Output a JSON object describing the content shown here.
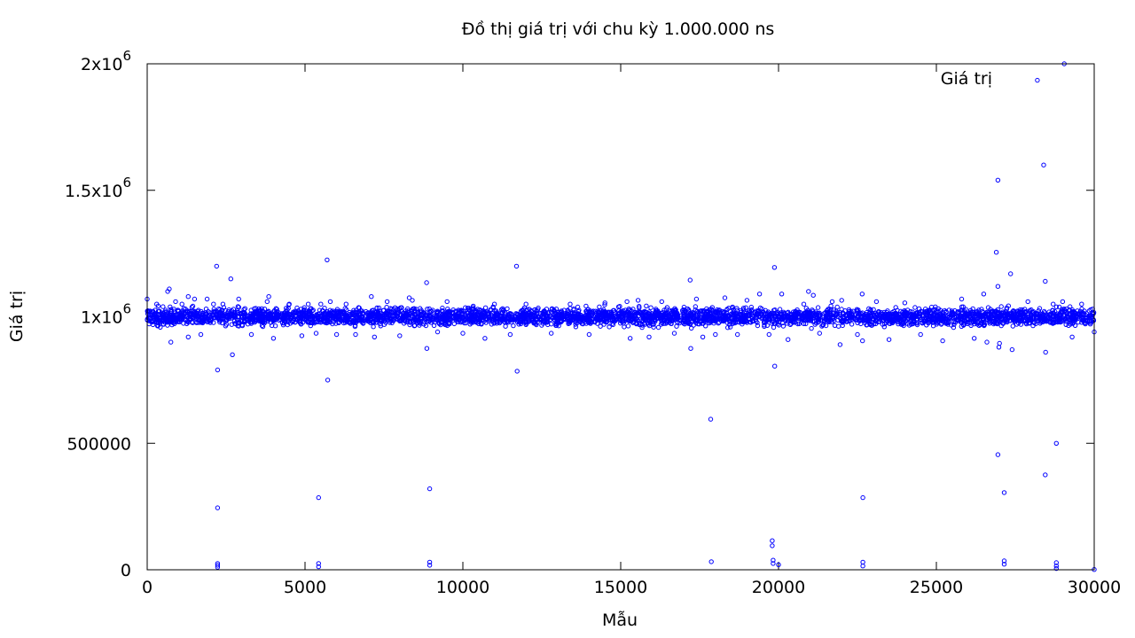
{
  "chart_data": {
    "type": "scatter",
    "title": "Đồ thị giá trị với chu kỳ 1.000.000 ns",
    "xlabel": "Mẫu",
    "ylabel": "Giá trị",
    "xlim": [
      0,
      30000
    ],
    "ylim": [
      0,
      2000000
    ],
    "x_ticks": [
      {
        "value": 0,
        "label": "0"
      },
      {
        "value": 5000,
        "label": "5000"
      },
      {
        "value": 10000,
        "label": "10000"
      },
      {
        "value": 15000,
        "label": "15000"
      },
      {
        "value": 20000,
        "label": "20000"
      },
      {
        "value": 25000,
        "label": "25000"
      },
      {
        "value": 30000,
        "label": "30000"
      }
    ],
    "y_ticks": [
      {
        "value": 0,
        "base": "0",
        "exp": ""
      },
      {
        "value": 500000,
        "base": "500000",
        "exp": ""
      },
      {
        "value": 1000000,
        "base": "1x10",
        "exp": "6"
      },
      {
        "value": 1500000,
        "base": "1.5x10",
        "exp": "6"
      },
      {
        "value": 2000000,
        "base": "2x10",
        "exp": "6"
      }
    ],
    "grid": false,
    "legend_position": "top-right",
    "series": [
      {
        "name": "Giá trị",
        "color": "#0000ff",
        "marker": "open-circle",
        "band": {
          "center": 1000000,
          "typical_spread": 35000,
          "x_start": 0,
          "x_end": 30000,
          "description_values": [
            960000,
            1040000
          ]
        },
        "points": [
          [
            0,
            1070000
          ],
          [
            300,
            1050000
          ],
          [
            500,
            1040000
          ],
          [
            650,
            1100000
          ],
          [
            700,
            1110000
          ],
          [
            750,
            900000
          ],
          [
            900,
            1060000
          ],
          [
            1100,
            1050000
          ],
          [
            1300,
            1080000
          ],
          [
            1300,
            920000
          ],
          [
            1500,
            1070000
          ],
          [
            1700,
            930000
          ],
          [
            1900,
            1070000
          ],
          [
            2100,
            1050000
          ],
          [
            2200,
            1200000
          ],
          [
            2230,
            790000
          ],
          [
            2230,
            245000
          ],
          [
            2230,
            25000
          ],
          [
            2230,
            18000
          ],
          [
            2230,
            10000
          ],
          [
            2400,
            1050000
          ],
          [
            2650,
            1150000
          ],
          [
            2700,
            850000
          ],
          [
            2900,
            1070000
          ],
          [
            3300,
            930000
          ],
          [
            3800,
            1060000
          ],
          [
            3850,
            1080000
          ],
          [
            4000,
            915000
          ],
          [
            4500,
            1050000
          ],
          [
            4900,
            925000
          ],
          [
            5100,
            1050000
          ],
          [
            5350,
            935000
          ],
          [
            5430,
            285000
          ],
          [
            5430,
            25000
          ],
          [
            5430,
            12000
          ],
          [
            5500,
            1050000
          ],
          [
            5700,
            1225000
          ],
          [
            5720,
            750000
          ],
          [
            5800,
            1060000
          ],
          [
            6000,
            930000
          ],
          [
            6300,
            1050000
          ],
          [
            6600,
            930000
          ],
          [
            7100,
            1080000
          ],
          [
            7200,
            920000
          ],
          [
            7600,
            1060000
          ],
          [
            8000,
            925000
          ],
          [
            8300,
            1075000
          ],
          [
            8400,
            1065000
          ],
          [
            8850,
            1135000
          ],
          [
            8860,
            875000
          ],
          [
            8950,
            320000
          ],
          [
            8950,
            30000
          ],
          [
            8950,
            18000
          ],
          [
            9200,
            940000
          ],
          [
            9500,
            1060000
          ],
          [
            10000,
            935000
          ],
          [
            10700,
            915000
          ],
          [
            11000,
            1050000
          ],
          [
            11500,
            930000
          ],
          [
            11700,
            1200000
          ],
          [
            11720,
            785000
          ],
          [
            12000,
            1050000
          ],
          [
            12800,
            935000
          ],
          [
            13400,
            1050000
          ],
          [
            14000,
            930000
          ],
          [
            14500,
            1055000
          ],
          [
            15200,
            1060000
          ],
          [
            15300,
            915000
          ],
          [
            15550,
            1065000
          ],
          [
            15900,
            920000
          ],
          [
            16300,
            1060000
          ],
          [
            16700,
            935000
          ],
          [
            17200,
            1145000
          ],
          [
            17220,
            875000
          ],
          [
            17400,
            1070000
          ],
          [
            17600,
            920000
          ],
          [
            17850,
            595000
          ],
          [
            17870,
            32000
          ],
          [
            18000,
            930000
          ],
          [
            18300,
            1075000
          ],
          [
            18700,
            930000
          ],
          [
            19000,
            1065000
          ],
          [
            19400,
            1090000
          ],
          [
            19700,
            930000
          ],
          [
            19800,
            115000
          ],
          [
            19800,
            95000
          ],
          [
            19830,
            38000
          ],
          [
            19830,
            25000
          ],
          [
            19870,
            1195000
          ],
          [
            19880,
            805000
          ],
          [
            20000,
            20000
          ],
          [
            20100,
            1090000
          ],
          [
            20300,
            910000
          ],
          [
            20800,
            1050000
          ],
          [
            20950,
            1100000
          ],
          [
            21100,
            1085000
          ],
          [
            21300,
            935000
          ],
          [
            21700,
            1060000
          ],
          [
            21950,
            890000
          ],
          [
            22000,
            1065000
          ],
          [
            22500,
            930000
          ],
          [
            22650,
            1090000
          ],
          [
            22660,
            905000
          ],
          [
            22670,
            285000
          ],
          [
            22670,
            30000
          ],
          [
            22670,
            15000
          ],
          [
            23100,
            1060000
          ],
          [
            23500,
            910000
          ],
          [
            24000,
            1055000
          ],
          [
            24500,
            930000
          ],
          [
            25200,
            905000
          ],
          [
            25800,
            1070000
          ],
          [
            26200,
            915000
          ],
          [
            26500,
            1090000
          ],
          [
            26600,
            900000
          ],
          [
            26900,
            1255000
          ],
          [
            26950,
            1540000
          ],
          [
            26950,
            1120000
          ],
          [
            26950,
            455000
          ],
          [
            26980,
            880000
          ],
          [
            27000,
            895000
          ],
          [
            27150,
            305000
          ],
          [
            27150,
            35000
          ],
          [
            27150,
            22000
          ],
          [
            27350,
            1170000
          ],
          [
            27400,
            870000
          ],
          [
            27900,
            1060000
          ],
          [
            28200,
            1935000
          ],
          [
            28400,
            1600000
          ],
          [
            28450,
            1140000
          ],
          [
            28460,
            860000
          ],
          [
            28450,
            375000
          ],
          [
            28700,
            1050000
          ],
          [
            28800,
            500000
          ],
          [
            28800,
            28000
          ],
          [
            28800,
            15000
          ],
          [
            28800,
            5000
          ],
          [
            29000,
            1060000
          ],
          [
            29050,
            2000000
          ],
          [
            29300,
            920000
          ],
          [
            29600,
            1050000
          ],
          [
            30000,
            940000
          ],
          [
            30000,
            1000
          ]
        ]
      }
    ]
  }
}
